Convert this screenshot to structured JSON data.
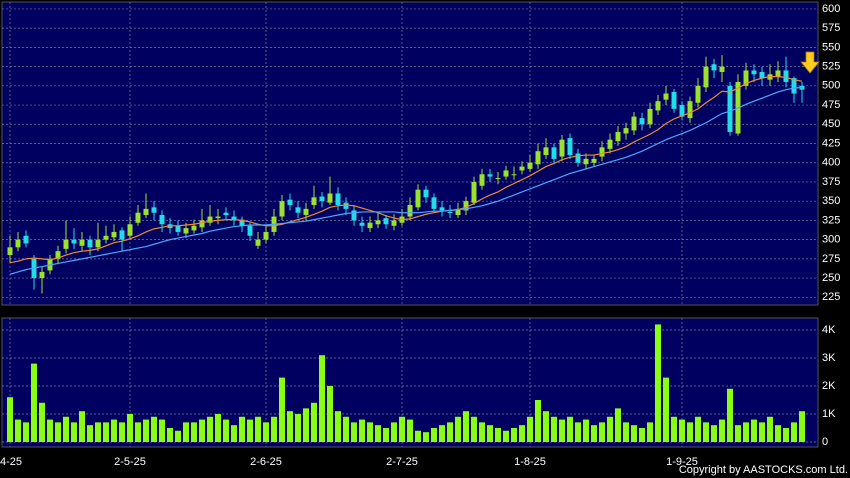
{
  "chart_data": {
    "type": "candlestick",
    "up_color": "#9be22d",
    "down_color": "#22dde8",
    "volume_color": "#88ff11",
    "categories": [
      "4-25",
      null,
      null,
      null,
      null,
      null,
      null,
      null,
      null,
      null,
      null,
      null,
      null,
      null,
      null,
      "2-5-25",
      null,
      null,
      null,
      null,
      null,
      null,
      null,
      null,
      null,
      null,
      null,
      null,
      null,
      null,
      null,
      null,
      "2-6-25",
      null,
      null,
      null,
      null,
      null,
      null,
      null,
      null,
      null,
      null,
      null,
      null,
      null,
      null,
      null,
      null,
      "2-7-25",
      null,
      null,
      null,
      null,
      null,
      null,
      null,
      null,
      null,
      null,
      null,
      null,
      null,
      null,
      null,
      "1-8-25",
      null,
      null,
      null,
      null,
      null,
      null,
      null,
      null,
      null,
      null,
      null,
      null,
      null,
      null,
      null,
      null,
      null,
      null,
      "1-9-25",
      null,
      null,
      null,
      null,
      null,
      null,
      null,
      null,
      null,
      null,
      null,
      null,
      null,
      null,
      null
    ],
    "open": [
      280,
      290,
      305,
      275,
      250,
      260,
      275,
      288,
      300,
      292,
      300,
      290,
      300,
      303,
      312,
      305,
      322,
      332,
      342,
      332,
      320,
      318,
      308,
      312,
      316,
      322,
      328,
      335,
      330,
      326,
      318,
      292,
      300,
      310,
      330,
      352,
      342,
      332,
      345,
      356,
      348,
      360,
      348,
      338,
      322,
      315,
      320,
      328,
      318,
      322,
      330,
      342,
      365,
      355,
      342,
      336,
      332,
      338,
      348,
      370,
      385,
      380,
      382,
      385,
      390,
      392,
      398,
      410,
      420,
      408,
      432,
      412,
      398,
      400,
      408,
      418,
      428,
      438,
      442,
      458,
      450,
      468,
      482,
      492,
      475,
      458,
      478,
      498,
      528,
      518,
      500,
      438,
      500,
      520,
      518,
      508,
      512,
      520,
      510,
      500
    ],
    "high": [
      305,
      310,
      312,
      280,
      265,
      280,
      292,
      325,
      315,
      310,
      305,
      322,
      318,
      320,
      316,
      330,
      345,
      360,
      350,
      338,
      328,
      325,
      322,
      326,
      340,
      345,
      340,
      342,
      338,
      330,
      322,
      310,
      318,
      340,
      358,
      360,
      350,
      348,
      370,
      362,
      382,
      368,
      355,
      345,
      330,
      330,
      335,
      332,
      333,
      340,
      355,
      372,
      370,
      360,
      350,
      345,
      348,
      356,
      382,
      392,
      392,
      388,
      396,
      395,
      402,
      410,
      425,
      432,
      425,
      436,
      438,
      418,
      412,
      410,
      428,
      438,
      448,
      452,
      466,
      465,
      478,
      488,
      500,
      496,
      480,
      486,
      510,
      538,
      535,
      540,
      505,
      515,
      530,
      528,
      525,
      528,
      532,
      538,
      512,
      505
    ],
    "low": [
      270,
      285,
      290,
      235,
      230,
      255,
      268,
      282,
      288,
      285,
      280,
      285,
      295,
      298,
      285,
      300,
      318,
      328,
      325,
      310,
      308,
      305,
      302,
      308,
      310,
      318,
      320,
      325,
      318,
      310,
      298,
      288,
      295,
      305,
      325,
      338,
      328,
      325,
      340,
      342,
      345,
      338,
      332,
      318,
      310,
      310,
      315,
      314,
      312,
      318,
      325,
      338,
      348,
      335,
      330,
      328,
      328,
      332,
      345,
      365,
      375,
      372,
      378,
      378,
      385,
      388,
      392,
      405,
      398,
      402,
      405,
      395,
      392,
      395,
      402,
      412,
      422,
      430,
      436,
      442,
      445,
      462,
      475,
      465,
      455,
      452,
      472,
      492,
      510,
      505,
      435,
      435,
      495,
      505,
      500,
      500,
      505,
      498,
      478,
      478
    ],
    "close": [
      290,
      300,
      295,
      250,
      258,
      275,
      285,
      300,
      295,
      300,
      290,
      300,
      305,
      310,
      300,
      320,
      335,
      340,
      335,
      320,
      315,
      310,
      315,
      318,
      325,
      330,
      330,
      332,
      325,
      318,
      305,
      300,
      310,
      330,
      350,
      345,
      335,
      340,
      355,
      350,
      360,
      345,
      340,
      325,
      318,
      322,
      325,
      320,
      325,
      330,
      345,
      365,
      355,
      340,
      338,
      335,
      340,
      350,
      375,
      385,
      382,
      380,
      390,
      385,
      395,
      400,
      415,
      420,
      405,
      430,
      410,
      400,
      405,
      405,
      420,
      430,
      440,
      445,
      460,
      450,
      470,
      480,
      490,
      470,
      460,
      480,
      500,
      525,
      520,
      525,
      440,
      505,
      520,
      515,
      510,
      515,
      520,
      505,
      490,
      495
    ],
    "volume": [
      1600,
      800,
      700,
      2800,
      1400,
      800,
      700,
      900,
      700,
      1100,
      600,
      700,
      700,
      800,
      700,
      1000,
      700,
      800,
      900,
      800,
      500,
      400,
      700,
      700,
      800,
      900,
      1000,
      800,
      600,
      900,
      800,
      900,
      700,
      900,
      2300,
      1100,
      1000,
      1200,
      1400,
      3100,
      2000,
      1100,
      900,
      700,
      800,
      700,
      600,
      500,
      700,
      900,
      800,
      400,
      350,
      500,
      600,
      700,
      900,
      1100,
      900,
      700,
      600,
      500,
      400,
      500,
      600,
      900,
      1500,
      1100,
      900,
      800,
      900,
      700,
      800,
      600,
      700,
      900,
      1200,
      700,
      600,
      500,
      700,
      4200,
      2300,
      900,
      800,
      700,
      900,
      700,
      600,
      800,
      1900,
      600,
      700,
      800,
      700,
      900,
      600,
      500,
      700,
      1100
    ],
    "moving_averages": [
      {
        "color": "#f08a30",
        "values": [
          270,
          272,
          275,
          276,
          275,
          274,
          276,
          280,
          283,
          285,
          286,
          288,
          292,
          296,
          298,
          301,
          305,
          310,
          314,
          316,
          318,
          318,
          319,
          320,
          322,
          324,
          325,
          326,
          326,
          325,
          323,
          320,
          318,
          318,
          320,
          323,
          326,
          329,
          333,
          337,
          342,
          344,
          345,
          344,
          341,
          338,
          335,
          331,
          328,
          326,
          327,
          330,
          333,
          335,
          337,
          338,
          339,
          342,
          347,
          353,
          358,
          362,
          368,
          373,
          378,
          383,
          389,
          395,
          399,
          404,
          407,
          409,
          410,
          410,
          412,
          414,
          417,
          421,
          427,
          432,
          437,
          443,
          451,
          457,
          461,
          465,
          470,
          478,
          485,
          493,
          492,
          497,
          503,
          507,
          510,
          512,
          512,
          511,
          508,
          506
        ]
      },
      {
        "color": "#4aa8ff",
        "values": [
          255,
          258,
          261,
          263,
          265,
          267,
          269,
          271,
          273,
          275,
          277,
          279,
          281,
          283,
          285,
          287,
          289,
          291,
          294,
          297,
          300,
          302,
          304,
          306,
          308,
          311,
          313,
          315,
          317,
          318,
          319,
          319,
          319,
          320,
          321,
          322,
          323,
          324,
          326,
          328,
          330,
          332,
          334,
          335,
          336,
          336,
          336,
          336,
          336,
          335,
          335,
          335,
          336,
          337,
          337,
          338,
          339,
          340,
          342,
          344,
          347,
          350,
          354,
          358,
          362,
          366,
          370,
          374,
          378,
          382,
          386,
          389,
          392,
          395,
          398,
          401,
          404,
          407,
          411,
          415,
          420,
          425,
          430,
          434,
          438,
          442,
          447,
          452,
          458,
          464,
          467,
          471,
          476,
          480,
          484,
          488,
          492,
          495,
          497,
          498
        ]
      }
    ],
    "ylim": [
      215,
      609
    ],
    "yticks": [
      225,
      250,
      275,
      300,
      325,
      350,
      375,
      400,
      425,
      450,
      475,
      500,
      525,
      550,
      575,
      600
    ],
    "volume_ylim": [
      -180,
      4430
    ],
    "volume_yticks": [
      0,
      {
        "value": 1000,
        "label": "1K"
      },
      {
        "value": 2000,
        "label": "2K"
      },
      {
        "value": 3000,
        "label": "3K"
      },
      {
        "value": 4000,
        "label": "4K"
      }
    ],
    "grid": true,
    "copyright": "Copyright by AASTOCKS.com Ltd."
  }
}
